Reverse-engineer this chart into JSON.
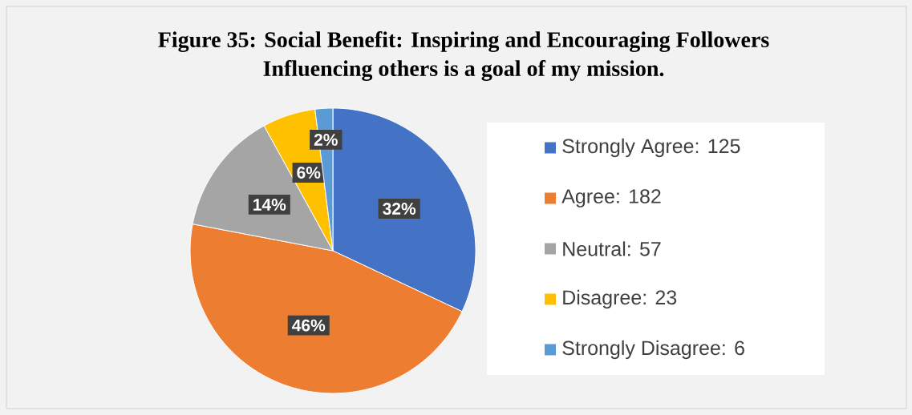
{
  "chart_data": {
    "type": "pie",
    "title": "Figure 35: Social Benefit: Inspiring and Encouraging Followers",
    "subtitle": "Influencing others is a goal of my mission.",
    "categories": [
      "Strongly Agree: 125",
      "Agree: 182",
      "Neutral: 57",
      "Disagree: 23",
      "Strongly Disagree: 6"
    ],
    "values": [
      32,
      46,
      14,
      6,
      2
    ],
    "colors": [
      "#4472c4",
      "#ed7d31",
      "#a5a5a5",
      "#ffc000",
      "#5b9bd5"
    ],
    "value_labels": [
      "32%",
      "46%",
      "14%",
      "6%",
      "2%"
    ],
    "legend": "right"
  }
}
